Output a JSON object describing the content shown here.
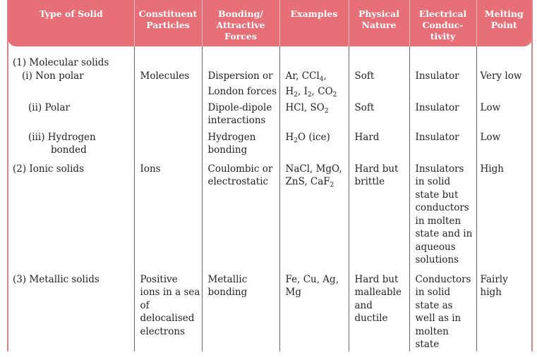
{
  "headers": [
    "Type of Solid",
    "Constituent Particles",
    "Bonding/ Attractive Forces",
    "Examples",
    "Physical Nature",
    "Electrical Conduc-tivity",
    "Melting Point"
  ],
  "molecular": {
    "category": "(1) Molecular solids",
    "nonpolar": {
      "type": "(i) Non polar",
      "particles": "Molecules",
      "bonding_1": "Dispersion or",
      "bonding_2": "London forces",
      "ex1": "Ar, CCl",
      "ex1_sub": "4",
      "ex1_tail": ",",
      "ex2_a": "H",
      "ex2_a_sub": "2",
      "ex2_b": ", I",
      "ex2_b_sub": "2",
      "ex2_c": ", CO",
      "ex2_c_sub": "2",
      "nature": "Soft",
      "conductivity": "Insulator",
      "melting": "Very low"
    },
    "polar": {
      "type": "(ii) Polar",
      "bonding": "Dipole-dipole interactions",
      "ex": "HCl, SO",
      "ex_sub": "2",
      "nature": "Soft",
      "conductivity": "Insulator",
      "melting": "Low"
    },
    "hbond": {
      "type_1": "(iii) Hydrogen",
      "type_2": "bonded",
      "bonding": "Hydrogen bonding",
      "ex_a": "H",
      "ex_a_sub": "2",
      "ex_b": "O (ice)",
      "nature": "Hard",
      "conductivity": "Insulator",
      "melting": "Low"
    }
  },
  "ionic": {
    "type": "(2) Ionic solids",
    "particles": "Ions",
    "bonding": "Coulombic or electrostatic",
    "ex_1": "NaCl, MgO,",
    "ex_2": "ZnS, CaF",
    "ex_2_sub": "2",
    "nature": "Hard but brittle",
    "conductivity": "Insulators in solid state but conductors in molten state and in aqueous solutions",
    "melting": "High"
  },
  "metallic": {
    "type": "(3) Metallic solids",
    "particles": "Positive ions in a sea of delocalised electrons",
    "bonding": "Metallic bonding",
    "ex": "Fe, Cu, Ag, Mg",
    "nature": "Hard but malleable and ductile",
    "conductivity": "Conductors in solid state as well as in molten state",
    "melting": "Fairly high"
  }
}
